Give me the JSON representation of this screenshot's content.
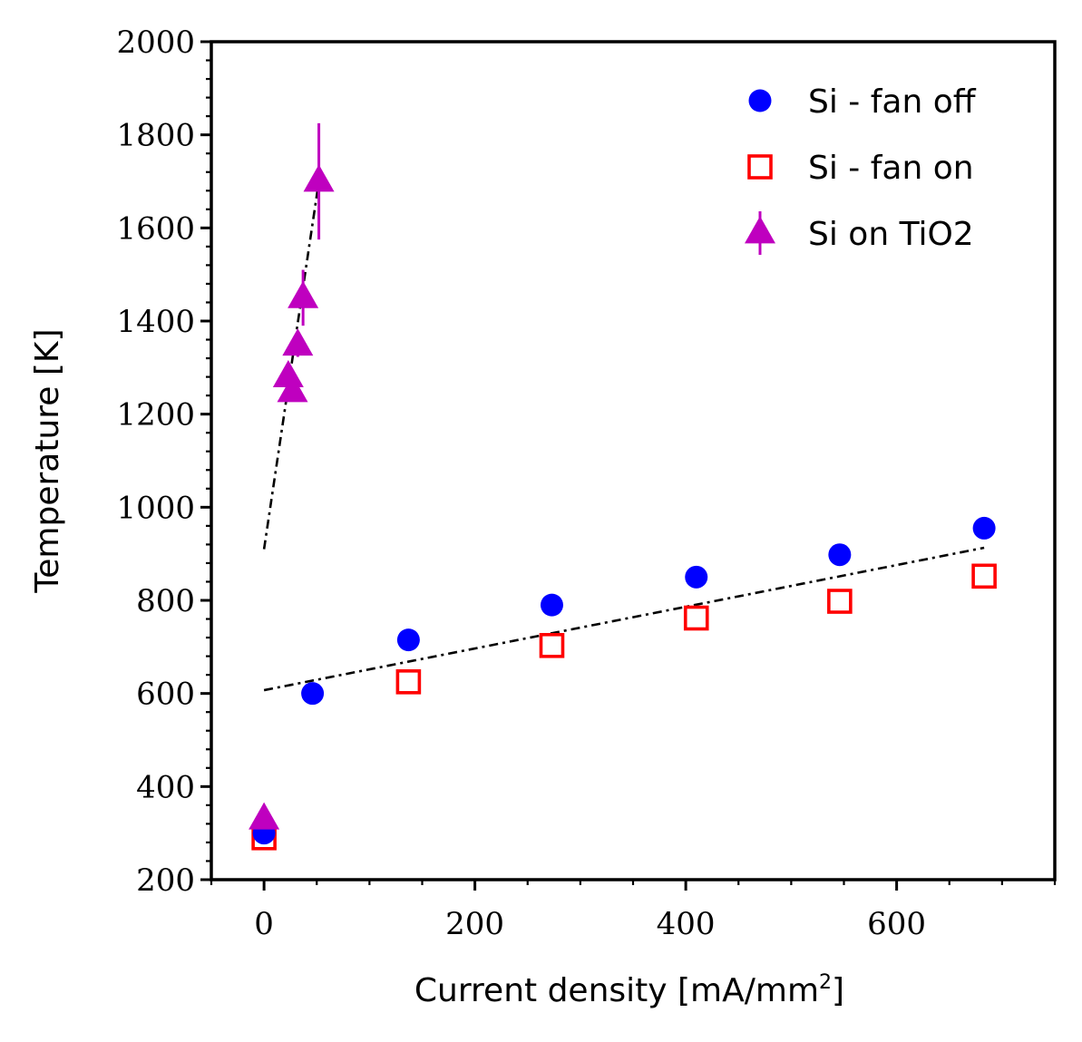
{
  "chart_data": {
    "type": "scatter",
    "xlabel": "Current density [mA/mm",
    "xlabel_sup": "2",
    "xlabel_end": "]",
    "ylabel": "Temperature [K]",
    "xlim": [
      -50,
      750
    ],
    "ylim": [
      200,
      2000
    ],
    "xticks": [
      "0",
      "200",
      "400",
      "600"
    ],
    "yticks": [
      "200",
      "400",
      "600",
      "800",
      "1000",
      "1200",
      "1400",
      "1600",
      "1800",
      "2000"
    ],
    "legend_position": "top-right",
    "grid": false,
    "series": [
      {
        "name": "Si - fan off",
        "marker": "circle",
        "color": "#0000ff",
        "x": [
          0,
          46,
          137,
          273,
          410,
          546,
          683
        ],
        "y": [
          300,
          600,
          715,
          790,
          850,
          898,
          955
        ]
      },
      {
        "name": "Si - fan on",
        "marker": "square-open",
        "color": "#ff0000",
        "x": [
          0,
          137,
          273,
          410,
          546,
          683
        ],
        "y": [
          290,
          625,
          703,
          762,
          798,
          852
        ]
      },
      {
        "name": "Si on TiO2",
        "marker": "triangle",
        "color": "#bf00bf",
        "x": [
          0,
          23,
          27,
          32,
          37,
          52
        ],
        "y": [
          330,
          1280,
          1248,
          1348,
          1450,
          1700
        ],
        "yerr": [
          0,
          0,
          0,
          25,
          60,
          125
        ]
      }
    ],
    "fits": [
      {
        "x": [
          0,
          683
        ],
        "y": [
          607,
          913
        ],
        "style": "dashdot"
      },
      {
        "x": [
          0,
          52
        ],
        "y": [
          910,
          1700
        ],
        "style": "dashdot"
      }
    ]
  }
}
